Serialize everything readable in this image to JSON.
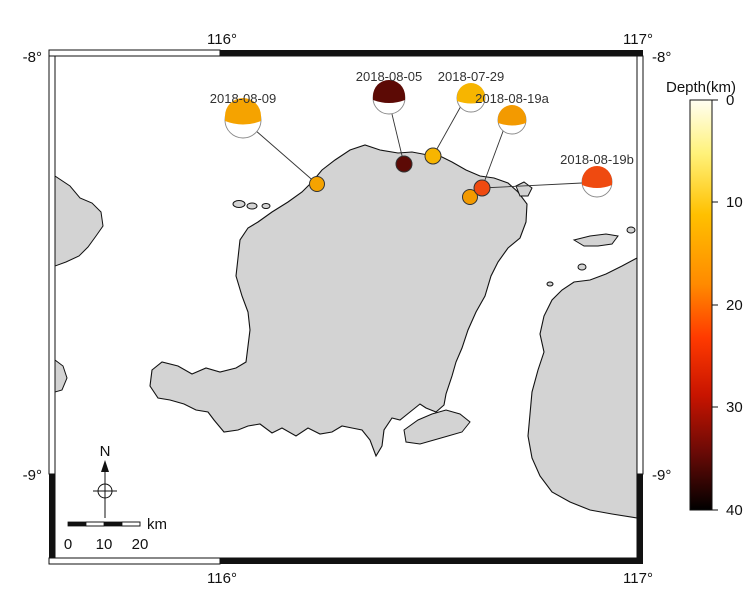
{
  "map": {
    "lon_labels": {
      "west": "116°",
      "east": "117°"
    },
    "lat_labels": {
      "north": "-8°",
      "south": "-9°"
    }
  },
  "events": [
    {
      "id": "2018-08-09",
      "label": "2018-08-09",
      "depth_km": 15,
      "color": "#f5a300"
    },
    {
      "id": "2018-08-05",
      "label": "2018-08-05",
      "depth_km": 36,
      "color": "#5c0a05"
    },
    {
      "id": "2018-07-29",
      "label": "2018-07-29",
      "depth_km": 12,
      "color": "#f7b500"
    },
    {
      "id": "2018-08-19a",
      "label": "2018-08-19a",
      "depth_km": 17,
      "color": "#f39a00"
    },
    {
      "id": "2018-08-19b",
      "label": "2018-08-19b",
      "depth_km": 21,
      "color": "#ef4a10"
    }
  ],
  "colorbar": {
    "title": "Depth(km)",
    "ticks": [
      "0",
      "10",
      "20",
      "30",
      "40"
    ]
  },
  "scalebar": {
    "unit": "km",
    "labels": [
      "0",
      "10",
      "20"
    ],
    "north_label": "N"
  },
  "colors": {
    "land": "#d3d3d3",
    "coast": "#111111"
  }
}
